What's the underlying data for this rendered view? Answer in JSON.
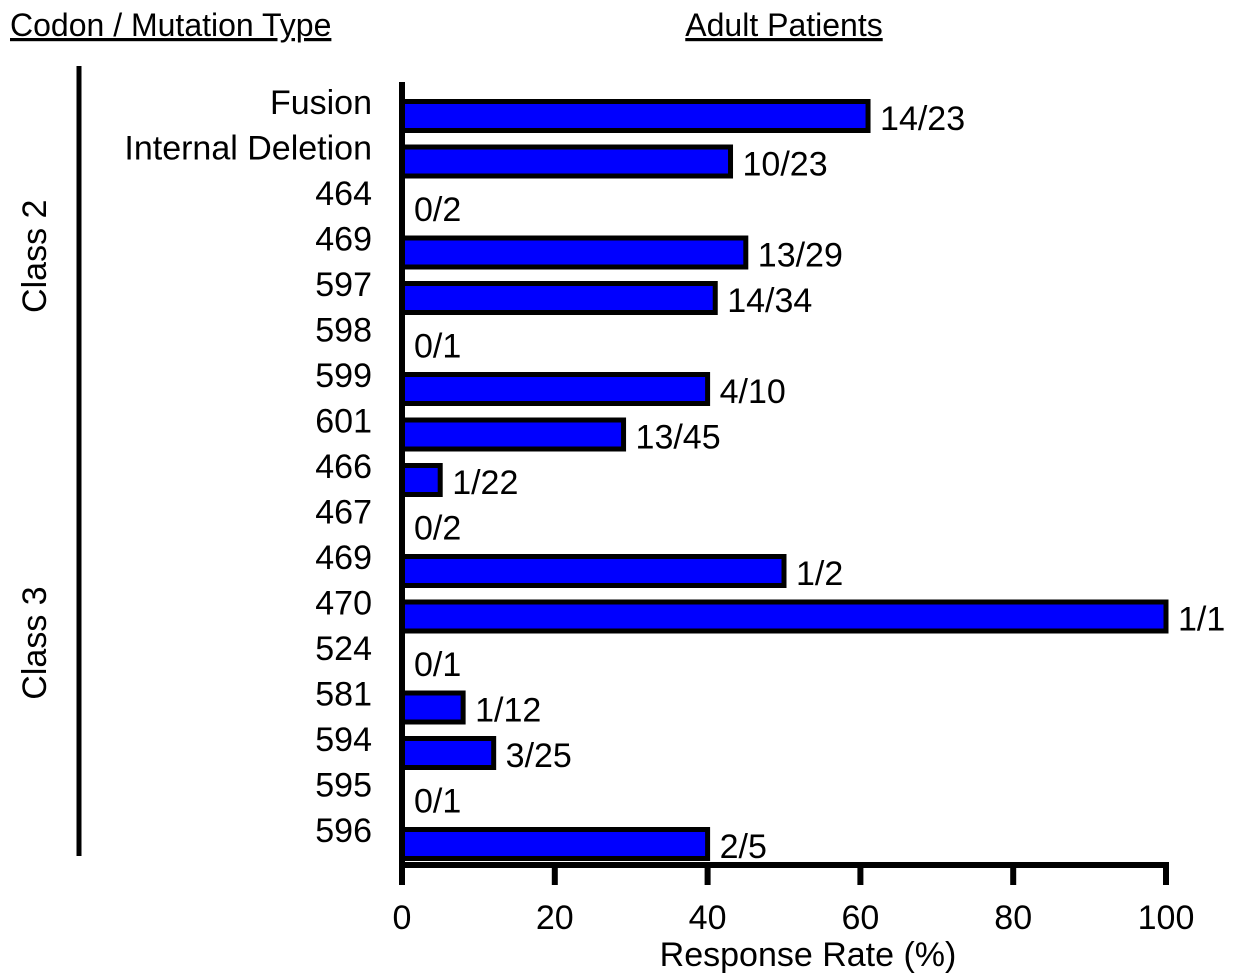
{
  "headers": {
    "left": "Codon / Mutation Type",
    "right": "Adult Patients"
  },
  "groups": [
    {
      "label": "Class 2",
      "first": 0,
      "last": 7
    },
    {
      "label": "Class 3",
      "first": 8,
      "last": 16
    }
  ],
  "chart_data": {
    "type": "bar",
    "orientation": "horizontal",
    "categories": [
      "Fusion",
      "Internal Deletion",
      "464",
      "469",
      "597",
      "598",
      "599",
      "601",
      "466",
      "467",
      "469",
      "470",
      "524",
      "581",
      "594",
      "595",
      "596"
    ],
    "values": [
      61,
      43,
      0,
      45,
      41,
      0,
      40,
      29,
      5,
      0,
      50,
      100,
      0,
      8,
      12,
      0,
      40
    ],
    "data_labels": [
      "14/23",
      "10/23",
      "0/2",
      "13/29",
      "14/34",
      "0/1",
      "4/10",
      "13/45",
      "1/22",
      "0/2",
      "1/2",
      "1/1",
      "0/1",
      "1/12",
      "3/25",
      "0/1",
      "2/5"
    ],
    "xlabel": "Response Rate (%)",
    "xlim": [
      0,
      100
    ],
    "xticks": [
      0,
      20,
      40,
      60,
      80,
      100
    ],
    "bar_color": "#0000ff",
    "grid": false,
    "legend": "none"
  }
}
